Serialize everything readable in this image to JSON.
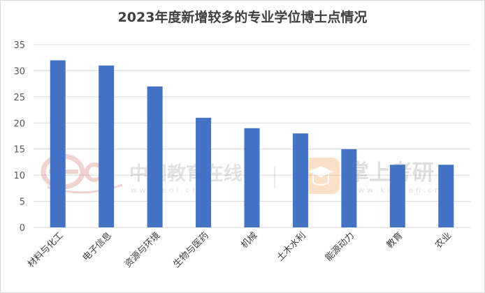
{
  "chart_data": {
    "type": "bar",
    "title": "2023年度新增较多的专业学位博士点情况",
    "categories": [
      "材料与化工",
      "电子信息",
      "资源与环境",
      "生物与医药",
      "机械",
      "土木水利",
      "能源动力",
      "教育",
      "农业"
    ],
    "values": [
      32,
      31,
      27,
      21,
      19,
      18,
      15,
      12,
      12
    ],
    "ylim": [
      0,
      35
    ],
    "yticks": [
      0,
      5,
      10,
      15,
      20,
      25,
      30,
      35
    ],
    "grid": true,
    "bar_color": "#4472c4",
    "xlabel": "",
    "ylabel": ""
  },
  "watermarks": {
    "left_logo_text": "中国教育在线",
    "left_url": "w w w . e o l . c n",
    "right_logo_text": "掌上考研",
    "right_url": "w w w . k a o y a n . c n"
  }
}
